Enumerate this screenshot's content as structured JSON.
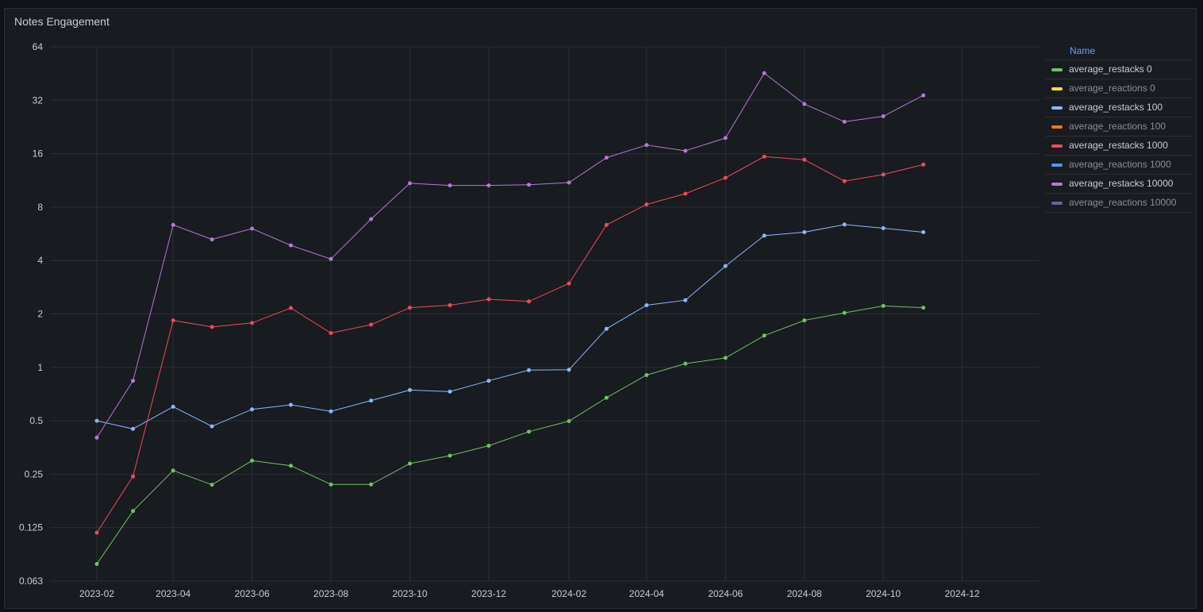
{
  "panel": {
    "title": "Notes Engagement"
  },
  "legend": {
    "header": "Name",
    "items": [
      {
        "label": "average_restacks 0",
        "color": "#73bf69",
        "visible": true
      },
      {
        "label": "average_reactions 0",
        "color": "#fade2a",
        "visible": false
      },
      {
        "label": "average_restacks 100",
        "color": "#8ab8ff",
        "visible": true
      },
      {
        "label": "average_reactions 100",
        "color": "#ff780a",
        "visible": false
      },
      {
        "label": "average_restacks 1000",
        "color": "#f2495c",
        "visible": true
      },
      {
        "label": "average_reactions 1000",
        "color": "#5794f2",
        "visible": false
      },
      {
        "label": "average_restacks 10000",
        "color": "#b877d9",
        "visible": true
      },
      {
        "label": "average_reactions 10000",
        "color": "#705da0",
        "visible": false
      }
    ]
  },
  "chart_data": {
    "type": "line",
    "title": "Notes Engagement",
    "xlabel": "",
    "ylabel": "",
    "y_scale": "log2",
    "ylim": [
      0.063,
      64
    ],
    "y_ticks": [
      "0.063",
      "0.125",
      "0.25",
      "0.5",
      "1",
      "2",
      "4",
      "8",
      "16",
      "32",
      "64"
    ],
    "y_tick_values": [
      0.0625,
      0.125,
      0.25,
      0.5,
      1,
      2,
      4,
      8,
      16,
      32,
      64
    ],
    "x_ticks": [
      "2023-02",
      "2023-04",
      "2023-06",
      "2023-08",
      "2023-10",
      "2023-12",
      "2024-02",
      "2024-04",
      "2024-06",
      "2024-08",
      "2024-10",
      "2024-12"
    ],
    "x": [
      "2023-02",
      "2023-03",
      "2023-04",
      "2023-05",
      "2023-06",
      "2023-07",
      "2023-08",
      "2023-09",
      "2023-10",
      "2023-11",
      "2023-12",
      "2024-01",
      "2024-02",
      "2024-03",
      "2024-04",
      "2024-05",
      "2024-06",
      "2024-07",
      "2024-08",
      "2024-09",
      "2024-10",
      "2024-11"
    ],
    "grid": true,
    "legend_position": "right",
    "series": [
      {
        "name": "average_restacks 0",
        "color": "#73bf69",
        "values": [
          0.078,
          0.155,
          0.262,
          0.218,
          0.298,
          0.279,
          0.219,
          0.219,
          0.287,
          0.318,
          0.362,
          0.434,
          0.498,
          0.674,
          0.905,
          1.05,
          1.13,
          1.51,
          1.84,
          2.03,
          2.22,
          2.17
        ]
      },
      {
        "name": "average_restacks 100",
        "color": "#8ab8ff",
        "values": [
          0.5,
          0.45,
          0.6,
          0.465,
          0.58,
          0.615,
          0.565,
          0.65,
          0.745,
          0.73,
          0.84,
          0.965,
          0.97,
          1.65,
          2.24,
          2.39,
          3.72,
          5.52,
          5.78,
          6.38,
          6.08,
          5.78
        ]
      },
      {
        "name": "average_restacks 1000",
        "color": "#f2495c",
        "values": [
          0.117,
          0.243,
          1.84,
          1.69,
          1.78,
          2.16,
          1.56,
          1.74,
          2.17,
          2.24,
          2.42,
          2.35,
          2.97,
          6.35,
          8.28,
          9.52,
          11.7,
          15.4,
          14.8,
          11.2,
          12.2,
          13.9
        ]
      },
      {
        "name": "average_restacks 10000",
        "color": "#b877d9",
        "values": [
          0.402,
          0.84,
          6.35,
          5.26,
          6.05,
          4.87,
          4.08,
          6.85,
          10.9,
          10.6,
          10.6,
          10.7,
          11.0,
          15.2,
          17.9,
          16.6,
          19.6,
          45.5,
          30.5,
          24.2,
          26.0,
          34.1
        ]
      }
    ]
  }
}
